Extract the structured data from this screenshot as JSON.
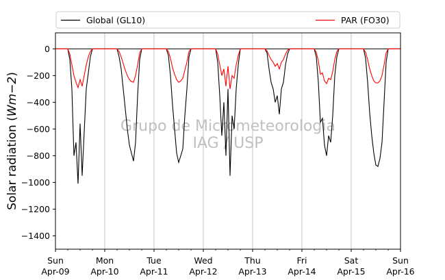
{
  "chart_data": {
    "type": "line",
    "ylabel": "Solar radiation ($Wm−2$)",
    "ylabel_parts": {
      "main": "Solar radiation (",
      "unit": "Wm−2",
      "close": ")"
    },
    "ylim": [
      -1500,
      120
    ],
    "yticks": [
      0,
      -200,
      -400,
      -600,
      -800,
      -1000,
      -1200,
      -1400
    ],
    "ytick_labels": [
      "0",
      "−200",
      "−400",
      "−600",
      "−800",
      "−1000",
      "−1200",
      "−1400"
    ],
    "xlim": [
      "2017-04-09",
      "2017-04-16"
    ],
    "xtick_labels": [
      [
        "Sun",
        "Apr-09"
      ],
      [
        "Mon",
        "Apr-10"
      ],
      [
        "Tue",
        "Apr-11"
      ],
      [
        "Wed",
        "Apr-12"
      ],
      [
        "Thu",
        "Apr-13"
      ],
      [
        "Fri",
        "Apr-14"
      ],
      [
        "Sat",
        "Apr-15"
      ],
      [
        "Sun",
        "Apr-16"
      ]
    ],
    "grid": "vertical",
    "legend_placement": "top",
    "watermark": [
      "Grupo de Micrometeorologia",
      "IAG / USP"
    ],
    "series": [
      {
        "name": "Global (GL10)",
        "color": "#000000",
        "x": [
          "Apr-09 06:00",
          "Apr-09 07:00",
          "Apr-09 08:00",
          "Apr-09 09:00",
          "Apr-09 10:00",
          "Apr-09 11:00",
          "Apr-09 12:00",
          "Apr-09 13:00",
          "Apr-09 14:00",
          "Apr-09 15:00",
          "Apr-09 16:00",
          "Apr-09 17:00",
          "Apr-09 18:00",
          "Apr-10 06:00",
          "Apr-10 07:00",
          "Apr-10 08:00",
          "Apr-10 09:00",
          "Apr-10 10:00",
          "Apr-10 11:00",
          "Apr-10 12:00",
          "Apr-10 13:00",
          "Apr-10 14:00",
          "Apr-10 15:00",
          "Apr-10 16:00",
          "Apr-10 17:00",
          "Apr-10 18:00",
          "Apr-11 06:00",
          "Apr-11 07:00",
          "Apr-11 08:00",
          "Apr-11 09:00",
          "Apr-11 10:00",
          "Apr-11 11:00",
          "Apr-11 12:00",
          "Apr-11 13:00",
          "Apr-11 14:00",
          "Apr-11 15:00",
          "Apr-11 16:00",
          "Apr-11 17:00",
          "Apr-11 18:00",
          "Apr-12 06:00",
          "Apr-12 07:00",
          "Apr-12 08:00",
          "Apr-12 09:00",
          "Apr-12 10:00",
          "Apr-12 11:00",
          "Apr-12 12:00",
          "Apr-12 13:00",
          "Apr-12 14:00",
          "Apr-12 15:00",
          "Apr-12 16:00",
          "Apr-12 17:00",
          "Apr-12 18:00",
          "Apr-13 06:00",
          "Apr-13 07:00",
          "Apr-13 08:00",
          "Apr-13 09:00",
          "Apr-13 10:00",
          "Apr-13 11:00",
          "Apr-13 12:00",
          "Apr-13 13:00",
          "Apr-13 14:00",
          "Apr-13 15:00",
          "Apr-13 16:00",
          "Apr-13 17:00",
          "Apr-13 18:00",
          "Apr-14 06:00",
          "Apr-14 07:00",
          "Apr-14 08:00",
          "Apr-14 09:00",
          "Apr-14 10:00",
          "Apr-14 11:00",
          "Apr-14 12:00",
          "Apr-14 13:00",
          "Apr-14 14:00",
          "Apr-14 15:00",
          "Apr-14 16:00",
          "Apr-14 17:00",
          "Apr-14 18:00",
          "Apr-15 06:00",
          "Apr-15 07:00",
          "Apr-15 08:00",
          "Apr-15 09:00",
          "Apr-15 10:00",
          "Apr-15 11:00",
          "Apr-15 12:00",
          "Apr-15 13:00",
          "Apr-15 14:00",
          "Apr-15 15:00",
          "Apr-15 16:00",
          "Apr-15 17:00",
          "Apr-15 18:00"
        ],
        "values": [
          0,
          -80,
          -300,
          -800,
          -700,
          -1010,
          -560,
          -950,
          -620,
          -300,
          -180,
          -60,
          0,
          0,
          -60,
          -150,
          -300,
          -450,
          -600,
          -720,
          -780,
          -840,
          -700,
          -350,
          -80,
          0,
          0,
          -50,
          -200,
          -420,
          -600,
          -780,
          -850,
          -800,
          -750,
          -500,
          -300,
          -60,
          0,
          0,
          -100,
          -350,
          -650,
          -400,
          -800,
          -300,
          -950,
          -500,
          -600,
          -300,
          -120,
          0,
          0,
          -30,
          -150,
          -250,
          -300,
          -400,
          -350,
          -490,
          -300,
          -250,
          -120,
          -40,
          0,
          0,
          -60,
          -250,
          -550,
          -520,
          -720,
          -800,
          -650,
          -700,
          -500,
          -200,
          -60,
          0,
          0,
          -70,
          -250,
          -480,
          -650,
          -780,
          -870,
          -880,
          -820,
          -700,
          -400,
          -100,
          0
        ]
      },
      {
        "name": "PAR (FO30)",
        "color": "#ff0000",
        "x": [
          "Apr-09 06:00",
          "Apr-09 07:00",
          "Apr-09 08:00",
          "Apr-09 09:00",
          "Apr-09 10:00",
          "Apr-09 11:00",
          "Apr-09 12:00",
          "Apr-09 13:00",
          "Apr-09 14:00",
          "Apr-09 15:00",
          "Apr-09 16:00",
          "Apr-09 17:00",
          "Apr-09 18:00",
          "Apr-10 06:00",
          "Apr-10 07:00",
          "Apr-10 08:00",
          "Apr-10 09:00",
          "Apr-10 10:00",
          "Apr-10 11:00",
          "Apr-10 12:00",
          "Apr-10 13:00",
          "Apr-10 14:00",
          "Apr-10 15:00",
          "Apr-10 16:00",
          "Apr-10 17:00",
          "Apr-10 18:00",
          "Apr-11 06:00",
          "Apr-11 07:00",
          "Apr-11 08:00",
          "Apr-11 09:00",
          "Apr-11 10:00",
          "Apr-11 11:00",
          "Apr-11 12:00",
          "Apr-11 13:00",
          "Apr-11 14:00",
          "Apr-11 15:00",
          "Apr-11 16:00",
          "Apr-11 17:00",
          "Apr-11 18:00",
          "Apr-12 06:00",
          "Apr-12 07:00",
          "Apr-12 08:00",
          "Apr-12 09:00",
          "Apr-12 10:00",
          "Apr-12 11:00",
          "Apr-12 12:00",
          "Apr-12 13:00",
          "Apr-12 14:00",
          "Apr-12 15:00",
          "Apr-12 16:00",
          "Apr-12 17:00",
          "Apr-12 18:00",
          "Apr-13 06:00",
          "Apr-13 07:00",
          "Apr-13 08:00",
          "Apr-13 09:00",
          "Apr-13 10:00",
          "Apr-13 11:00",
          "Apr-13 12:00",
          "Apr-13 13:00",
          "Apr-13 14:00",
          "Apr-13 15:00",
          "Apr-13 16:00",
          "Apr-13 17:00",
          "Apr-13 18:00",
          "Apr-14 06:00",
          "Apr-14 07:00",
          "Apr-14 08:00",
          "Apr-14 09:00",
          "Apr-14 10:00",
          "Apr-14 11:00",
          "Apr-14 12:00",
          "Apr-14 13:00",
          "Apr-14 14:00",
          "Apr-14 15:00",
          "Apr-14 16:00",
          "Apr-14 17:00",
          "Apr-14 18:00",
          "Apr-15 06:00",
          "Apr-15 07:00",
          "Apr-15 08:00",
          "Apr-15 09:00",
          "Apr-15 10:00",
          "Apr-15 11:00",
          "Apr-15 12:00",
          "Apr-15 13:00",
          "Apr-15 14:00",
          "Apr-15 15:00",
          "Apr-15 16:00",
          "Apr-15 17:00",
          "Apr-15 18:00"
        ],
        "values": [
          0,
          -40,
          -120,
          -200,
          -250,
          -290,
          -230,
          -280,
          -200,
          -120,
          -60,
          -20,
          0,
          0,
          -20,
          -60,
          -110,
          -160,
          -200,
          -230,
          -245,
          -250,
          -200,
          -120,
          -30,
          0,
          0,
          -20,
          -70,
          -140,
          -190,
          -230,
          -250,
          -240,
          -220,
          -160,
          -100,
          -20,
          0,
          0,
          -40,
          -120,
          -200,
          -150,
          -280,
          -130,
          -300,
          -200,
          -220,
          -120,
          -50,
          0,
          0,
          -15,
          -50,
          -80,
          -100,
          -130,
          -110,
          -150,
          -100,
          -80,
          -40,
          -10,
          0,
          0,
          -25,
          -90,
          -190,
          -180,
          -240,
          -260,
          -220,
          -230,
          -170,
          -80,
          -20,
          0,
          0,
          -25,
          -80,
          -150,
          -200,
          -240,
          -255,
          -255,
          -240,
          -200,
          -120,
          -30,
          0
        ]
      }
    ]
  }
}
